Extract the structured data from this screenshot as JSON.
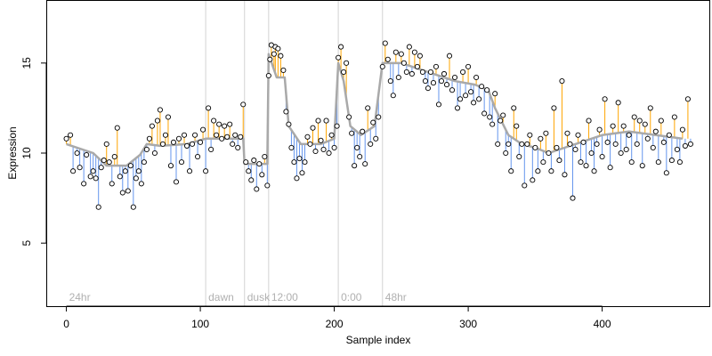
{
  "chart_data": {
    "type": "scatter",
    "title": "",
    "xlabel": "Sample index",
    "ylabel": "Expression",
    "xlim": [
      -15,
      480
    ],
    "ylim": [
      1.5,
      18.5
    ],
    "x_ticks": [
      0,
      100,
      200,
      300,
      400
    ],
    "y_ticks": [
      5,
      10,
      15
    ],
    "grid": false,
    "legend": "none",
    "colors": {
      "points_fill": "#ffffff",
      "points_stroke": "#000000",
      "above_fit": "#ffa500",
      "below_fit": "#6495ed",
      "fit_line": "#a9a9a9",
      "phase_lines": "#d3d3d3",
      "phase_text": "#b0b0b0"
    },
    "phases": [
      {
        "label": "24hr",
        "x": 0,
        "boundary": false
      },
      {
        "label": "dawn",
        "x": 104,
        "boundary": true
      },
      {
        "label": "dusk",
        "x": 133,
        "boundary": true
      },
      {
        "label": "12:00",
        "x": 151,
        "boundary": true
      },
      {
        "label": "0:00",
        "x": 203,
        "boundary": true
      },
      {
        "label": "48hr",
        "x": 236,
        "boundary": true
      }
    ],
    "fit": [
      [
        0,
        10.5
      ],
      [
        20,
        10.0
      ],
      [
        30,
        9.3
      ],
      [
        45,
        9.3
      ],
      [
        55,
        9.9
      ],
      [
        60,
        10.5
      ],
      [
        70,
        10.4
      ],
      [
        90,
        10.5
      ],
      [
        104,
        10.8
      ],
      [
        132,
        10.8
      ],
      [
        133,
        9.4
      ],
      [
        150,
        9.4
      ],
      [
        151,
        15.5
      ],
      [
        157,
        14.2
      ],
      [
        163,
        14.2
      ],
      [
        166,
        11.5
      ],
      [
        175,
        10.5
      ],
      [
        190,
        10.5
      ],
      [
        200,
        10.8
      ],
      [
        203,
        15.0
      ],
      [
        207,
        14.0
      ],
      [
        212,
        11.5
      ],
      [
        220,
        11.0
      ],
      [
        230,
        11.5
      ],
      [
        236,
        15.0
      ],
      [
        250,
        15.0
      ],
      [
        270,
        14.5
      ],
      [
        290,
        14.0
      ],
      [
        305,
        13.8
      ],
      [
        315,
        13.5
      ],
      [
        320,
        12.5
      ],
      [
        330,
        11.0
      ],
      [
        340,
        10.5
      ],
      [
        350,
        10.3
      ],
      [
        360,
        10.0
      ],
      [
        380,
        10.5
      ],
      [
        400,
        11.0
      ],
      [
        420,
        11.2
      ],
      [
        440,
        11.0
      ],
      [
        460,
        10.8
      ]
    ],
    "points": [
      [
        0,
        10.8
      ],
      [
        3,
        11.0
      ],
      [
        5,
        9.0
      ],
      [
        8,
        10.0
      ],
      [
        10,
        9.2
      ],
      [
        13,
        8.3
      ],
      [
        15,
        9.9
      ],
      [
        18,
        8.7
      ],
      [
        20,
        9.0
      ],
      [
        22,
        8.6
      ],
      [
        24,
        7.0
      ],
      [
        26,
        9.2
      ],
      [
        28,
        9.6
      ],
      [
        30,
        10.5
      ],
      [
        32,
        9.5
      ],
      [
        34,
        8.3
      ],
      [
        36,
        9.8
      ],
      [
        38,
        11.4
      ],
      [
        40,
        8.7
      ],
      [
        42,
        7.8
      ],
      [
        44,
        9.0
      ],
      [
        46,
        7.9
      ],
      [
        48,
        9.3
      ],
      [
        50,
        7.0
      ],
      [
        52,
        8.6
      ],
      [
        54,
        9.0
      ],
      [
        56,
        8.3
      ],
      [
        58,
        9.5
      ],
      [
        60,
        10.2
      ],
      [
        62,
        10.8
      ],
      [
        64,
        11.5
      ],
      [
        66,
        10.0
      ],
      [
        68,
        11.8
      ],
      [
        70,
        12.4
      ],
      [
        72,
        10.5
      ],
      [
        74,
        11.0
      ],
      [
        76,
        12.0
      ],
      [
        78,
        9.3
      ],
      [
        80,
        10.6
      ],
      [
        82,
        8.4
      ],
      [
        84,
        10.8
      ],
      [
        86,
        9.5
      ],
      [
        88,
        11.0
      ],
      [
        90,
        10.4
      ],
      [
        92,
        9.0
      ],
      [
        94,
        10.5
      ],
      [
        96,
        11.0
      ],
      [
        98,
        9.8
      ],
      [
        100,
        10.6
      ],
      [
        102,
        11.3
      ],
      [
        104,
        9.0
      ],
      [
        106,
        12.5
      ],
      [
        108,
        10.2
      ],
      [
        110,
        11.8
      ],
      [
        112,
        11.0
      ],
      [
        114,
        11.6
      ],
      [
        116,
        10.8
      ],
      [
        118,
        11.5
      ],
      [
        120,
        10.9
      ],
      [
        122,
        11.6
      ],
      [
        124,
        10.5
      ],
      [
        126,
        11.0
      ],
      [
        128,
        10.3
      ],
      [
        130,
        10.9
      ],
      [
        132,
        12.7
      ],
      [
        134,
        9.5
      ],
      [
        136,
        9.0
      ],
      [
        138,
        8.5
      ],
      [
        140,
        9.6
      ],
      [
        142,
        8.0
      ],
      [
        144,
        9.4
      ],
      [
        146,
        8.8
      ],
      [
        148,
        9.8
      ],
      [
        150,
        8.2
      ],
      [
        151,
        14.3
      ],
      [
        152,
        15.2
      ],
      [
        153,
        16.0
      ],
      [
        155,
        15.5
      ],
      [
        156,
        15.9
      ],
      [
        158,
        15.8
      ],
      [
        160,
        15.4
      ],
      [
        162,
        14.6
      ],
      [
        164,
        12.3
      ],
      [
        166,
        11.6
      ],
      [
        168,
        10.3
      ],
      [
        170,
        9.5
      ],
      [
        172,
        8.6
      ],
      [
        174,
        9.7
      ],
      [
        176,
        8.9
      ],
      [
        178,
        9.5
      ],
      [
        180,
        10.9
      ],
      [
        182,
        10.5
      ],
      [
        184,
        11.4
      ],
      [
        186,
        10.1
      ],
      [
        188,
        11.8
      ],
      [
        190,
        10.7
      ],
      [
        192,
        10.2
      ],
      [
        194,
        11.8
      ],
      [
        196,
        10.0
      ],
      [
        198,
        11.0
      ],
      [
        200,
        10.3
      ],
      [
        202,
        11.5
      ],
      [
        203,
        15.3
      ],
      [
        205,
        15.9
      ],
      [
        207,
        14.5
      ],
      [
        209,
        15.0
      ],
      [
        211,
        12.0
      ],
      [
        213,
        11.1
      ],
      [
        215,
        9.3
      ],
      [
        217,
        10.3
      ],
      [
        219,
        9.8
      ],
      [
        221,
        11.2
      ],
      [
        223,
        9.4
      ],
      [
        225,
        12.5
      ],
      [
        227,
        10.5
      ],
      [
        229,
        11.7
      ],
      [
        231,
        10.8
      ],
      [
        233,
        12.0
      ],
      [
        236,
        14.8
      ],
      [
        238,
        16.1
      ],
      [
        240,
        15.2
      ],
      [
        242,
        14.0
      ],
      [
        244,
        13.2
      ],
      [
        246,
        15.6
      ],
      [
        248,
        14.2
      ],
      [
        250,
        15.5
      ],
      [
        252,
        15.0
      ],
      [
        254,
        14.5
      ],
      [
        256,
        15.9
      ],
      [
        258,
        14.4
      ],
      [
        260,
        15.6
      ],
      [
        262,
        14.8
      ],
      [
        264,
        15.4
      ],
      [
        266,
        14.5
      ],
      [
        268,
        14.0
      ],
      [
        270,
        13.6
      ],
      [
        272,
        14.5
      ],
      [
        274,
        13.9
      ],
      [
        276,
        14.8
      ],
      [
        278,
        12.7
      ],
      [
        280,
        14.0
      ],
      [
        282,
        14.4
      ],
      [
        284,
        13.8
      ],
      [
        286,
        15.4
      ],
      [
        288,
        13.5
      ],
      [
        290,
        14.2
      ],
      [
        292,
        12.5
      ],
      [
        294,
        13.0
      ],
      [
        296,
        14.5
      ],
      [
        298,
        13.2
      ],
      [
        300,
        14.8
      ],
      [
        302,
        13.4
      ],
      [
        304,
        12.8
      ],
      [
        306,
        14.2
      ],
      [
        308,
        13.0
      ],
      [
        310,
        13.7
      ],
      [
        312,
        12.2
      ],
      [
        314,
        13.5
      ],
      [
        316,
        12.0
      ],
      [
        318,
        11.6
      ],
      [
        320,
        13.3
      ],
      [
        322,
        10.5
      ],
      [
        324,
        11.8
      ],
      [
        326,
        12.1
      ],
      [
        328,
        10.0
      ],
      [
        330,
        10.5
      ],
      [
        332,
        9.0
      ],
      [
        334,
        12.5
      ],
      [
        336,
        11.5
      ],
      [
        338,
        9.8
      ],
      [
        340,
        10.5
      ],
      [
        342,
        8.2
      ],
      [
        344,
        10.5
      ],
      [
        346,
        11.0
      ],
      [
        348,
        8.5
      ],
      [
        350,
        10.3
      ],
      [
        352,
        9.0
      ],
      [
        354,
        10.8
      ],
      [
        356,
        9.5
      ],
      [
        358,
        11.1
      ],
      [
        360,
        10.0
      ],
      [
        362,
        9.0
      ],
      [
        364,
        12.5
      ],
      [
        366,
        10.3
      ],
      [
        368,
        9.6
      ],
      [
        370,
        14.0
      ],
      [
        372,
        8.8
      ],
      [
        374,
        11.1
      ],
      [
        376,
        10.5
      ],
      [
        378,
        7.5
      ],
      [
        380,
        10.2
      ],
      [
        382,
        11.0
      ],
      [
        384,
        9.5
      ],
      [
        386,
        10.6
      ],
      [
        388,
        9.3
      ],
      [
        390,
        11.8
      ],
      [
        392,
        10.0
      ],
      [
        394,
        9.0
      ],
      [
        396,
        10.5
      ],
      [
        398,
        11.3
      ],
      [
        400,
        9.8
      ],
      [
        402,
        13.0
      ],
      [
        404,
        10.6
      ],
      [
        406,
        9.2
      ],
      [
        408,
        11.5
      ],
      [
        410,
        10.5
      ],
      [
        412,
        12.8
      ],
      [
        414,
        10.0
      ],
      [
        416,
        11.5
      ],
      [
        418,
        10.2
      ],
      [
        420,
        11.0
      ],
      [
        422,
        9.5
      ],
      [
        424,
        12.0
      ],
      [
        426,
        10.5
      ],
      [
        428,
        11.8
      ],
      [
        430,
        9.3
      ],
      [
        432,
        11.6
      ],
      [
        434,
        10.8
      ],
      [
        436,
        12.5
      ],
      [
        438,
        10.3
      ],
      [
        440,
        11.2
      ],
      [
        442,
        9.5
      ],
      [
        444,
        11.8
      ],
      [
        446,
        10.6
      ],
      [
        448,
        8.9
      ],
      [
        450,
        11.0
      ],
      [
        452,
        9.6
      ],
      [
        454,
        12.0
      ],
      [
        456,
        10.2
      ],
      [
        458,
        9.5
      ],
      [
        460,
        11.3
      ],
      [
        462,
        10.4
      ],
      [
        464,
        13.0
      ],
      [
        466,
        10.5
      ]
    ]
  }
}
